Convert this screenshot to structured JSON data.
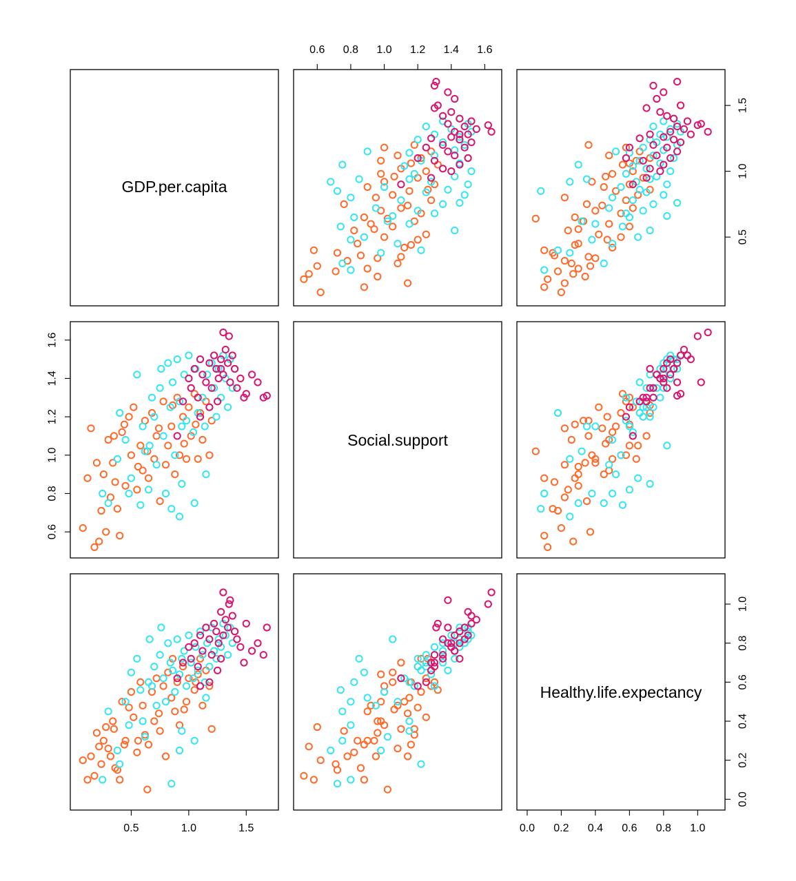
{
  "chart_data": {
    "type": "scatter",
    "variables": [
      "GDP.per.capita",
      "Social.support",
      "Healthy.life.expectancy"
    ],
    "axes": {
      "GDP.per.capita": {
        "range": [
          0.03,
          1.72
        ],
        "ticks": [
          "0.5",
          "1.0",
          "1.5"
        ]
      },
      "Social.support": {
        "range": [
          0.5,
          1.66
        ],
        "ticks": [
          "0.6",
          "0.8",
          "1.0",
          "1.2",
          "1.4",
          "1.6"
        ]
      },
      "Healthy.life.expectancy": {
        "range": [
          -0.02,
          1.12
        ],
        "ticks": [
          "0.0",
          "0.2",
          "0.4",
          "0.6",
          "0.8",
          "1.0"
        ]
      }
    },
    "groups": [
      {
        "color": "#ff6a2a",
        "points": [
          [
            0.08,
            0.62,
            0.2
          ],
          [
            0.12,
            0.88,
            0.1
          ],
          [
            0.18,
            0.52,
            0.12
          ],
          [
            0.22,
            0.55,
            0.27
          ],
          [
            0.24,
            0.71,
            0.18
          ],
          [
            0.26,
            0.9,
            0.3
          ],
          [
            0.28,
            0.6,
            0.37
          ],
          [
            0.3,
            1.08,
            0.26
          ],
          [
            0.32,
            0.78,
            0.22
          ],
          [
            0.34,
            0.96,
            0.4
          ],
          [
            0.35,
            1.1,
            0.36
          ],
          [
            0.38,
            0.72,
            0.15
          ],
          [
            0.4,
            0.58,
            0.1
          ],
          [
            0.42,
            1.12,
            0.5
          ],
          [
            0.45,
            0.84,
            0.3
          ],
          [
            0.48,
            1.2,
            0.47
          ],
          [
            0.5,
            1.0,
            0.55
          ],
          [
            0.52,
            1.25,
            0.42
          ],
          [
            0.55,
            0.82,
            0.24
          ],
          [
            0.58,
            1.05,
            0.6
          ],
          [
            0.6,
            0.92,
            0.48
          ],
          [
            0.62,
            1.18,
            0.33
          ],
          [
            0.65,
            0.88,
            0.28
          ],
          [
            0.68,
            1.22,
            0.55
          ],
          [
            0.7,
            0.98,
            0.4
          ],
          [
            0.72,
            1.1,
            0.62
          ],
          [
            0.75,
            0.76,
            0.35
          ],
          [
            0.78,
            1.28,
            0.58
          ],
          [
            0.8,
            0.95,
            0.22
          ],
          [
            0.82,
            1.05,
            0.65
          ],
          [
            0.85,
            1.15,
            0.52
          ],
          [
            0.88,
            0.9,
            0.45
          ],
          [
            0.9,
            1.3,
            0.6
          ],
          [
            0.92,
            1.0,
            0.38
          ],
          [
            0.95,
            1.2,
            0.68
          ],
          [
            0.98,
            0.98,
            0.5
          ],
          [
            1.0,
            1.25,
            0.62
          ],
          [
            1.02,
            1.1,
            0.7
          ],
          [
            1.05,
            1.32,
            0.56
          ],
          [
            1.08,
            0.98,
            0.64
          ],
          [
            1.1,
            1.22,
            0.72
          ],
          [
            1.12,
            1.08,
            0.48
          ],
          [
            1.15,
            1.28,
            0.66
          ],
          [
            1.18,
            1.0,
            0.58
          ],
          [
            1.2,
            1.18,
            0.36
          ],
          [
            0.15,
            1.14,
            0.22
          ],
          [
            0.2,
            0.96,
            0.34
          ],
          [
            0.36,
            0.86,
            0.16
          ],
          [
            0.44,
            1.16,
            0.28
          ],
          [
            0.56,
            0.94,
            0.3
          ],
          [
            0.64,
            1.02,
            0.05
          ],
          [
            0.74,
            1.14,
            0.44
          ],
          [
            0.86,
            1.26,
            0.72
          ],
          [
            0.96,
            1.06,
            0.46
          ],
          [
            1.06,
            1.16,
            0.6
          ]
        ]
      },
      {
        "color": "#33e6f2",
        "points": [
          [
            0.25,
            0.8,
            0.1
          ],
          [
            0.3,
            0.75,
            0.45
          ],
          [
            0.38,
            0.98,
            0.25
          ],
          [
            0.45,
            1.08,
            0.5
          ],
          [
            0.5,
            0.88,
            0.65
          ],
          [
            0.55,
            1.42,
            0.72
          ],
          [
            0.58,
            0.74,
            0.56
          ],
          [
            0.6,
            1.15,
            0.4
          ],
          [
            0.62,
            1.02,
            0.32
          ],
          [
            0.65,
            0.82,
            0.6
          ],
          [
            0.68,
            1.3,
            0.58
          ],
          [
            0.7,
            1.2,
            0.68
          ],
          [
            0.72,
            0.95,
            0.48
          ],
          [
            0.75,
            1.35,
            0.74
          ],
          [
            0.78,
            1.1,
            0.62
          ],
          [
            0.8,
            0.8,
            0.5
          ],
          [
            0.82,
            1.48,
            0.8
          ],
          [
            0.84,
            1.25,
            0.7
          ],
          [
            0.86,
            1.38,
            0.66
          ],
          [
            0.88,
            1.0,
            0.55
          ],
          [
            0.9,
            1.5,
            0.82
          ],
          [
            0.92,
            1.28,
            0.64
          ],
          [
            0.94,
            0.85,
            0.72
          ],
          [
            0.96,
            1.42,
            0.76
          ],
          [
            0.98,
            1.18,
            0.58
          ],
          [
            1.0,
            1.52,
            0.84
          ],
          [
            1.02,
            1.35,
            0.7
          ],
          [
            1.04,
            1.12,
            0.62
          ],
          [
            1.06,
            1.45,
            0.78
          ],
          [
            1.08,
            1.22,
            0.66
          ],
          [
            1.1,
            1.5,
            0.86
          ],
          [
            1.12,
            1.3,
            0.74
          ],
          [
            1.14,
            1.15,
            0.6
          ],
          [
            1.16,
            1.42,
            0.8
          ],
          [
            1.18,
            1.25,
            0.68
          ],
          [
            1.2,
            1.48,
            0.88
          ],
          [
            1.22,
            1.35,
            0.76
          ],
          [
            1.24,
            1.2,
            0.72
          ],
          [
            1.26,
            1.45,
            0.82
          ],
          [
            1.28,
            1.3,
            0.78
          ],
          [
            1.3,
            1.52,
            0.9
          ],
          [
            1.32,
            1.4,
            0.84
          ],
          [
            1.34,
            1.25,
            0.74
          ],
          [
            1.36,
            1.5,
            0.88
          ],
          [
            1.38,
            1.35,
            0.8
          ],
          [
            1.4,
            1.45,
            0.86
          ],
          [
            0.85,
            0.72,
            0.08
          ],
          [
            0.92,
            0.68,
            0.25
          ],
          [
            1.05,
            0.75,
            0.3
          ],
          [
            0.4,
            1.22,
            0.18
          ],
          [
            0.48,
            0.8,
            0.38
          ],
          [
            0.66,
            1.05,
            0.82
          ],
          [
            0.76,
            1.45,
            0.88
          ],
          [
            0.94,
            1.15,
            0.35
          ],
          [
            1.15,
            0.9,
            0.52
          ]
        ]
      },
      {
        "color": "#d8156f",
        "points": [
          [
            0.9,
            1.1,
            0.62
          ],
          [
            0.95,
            1.28,
            0.7
          ],
          [
            1.0,
            1.4,
            0.78
          ],
          [
            1.02,
            1.35,
            0.72
          ],
          [
            1.05,
            1.45,
            0.8
          ],
          [
            1.08,
            1.3,
            0.68
          ],
          [
            1.1,
            1.5,
            0.84
          ],
          [
            1.12,
            1.42,
            0.76
          ],
          [
            1.15,
            1.38,
            0.88
          ],
          [
            1.18,
            1.48,
            0.82
          ],
          [
            1.2,
            1.35,
            0.74
          ],
          [
            1.22,
            1.52,
            0.9
          ],
          [
            1.24,
            1.45,
            0.86
          ],
          [
            1.26,
            1.4,
            0.8
          ],
          [
            1.28,
            1.5,
            0.96
          ],
          [
            1.3,
            1.42,
            0.84
          ],
          [
            1.32,
            1.55,
            0.92
          ],
          [
            1.34,
            1.48,
            0.88
          ],
          [
            1.36,
            1.38,
            1.02
          ],
          [
            1.38,
            1.52,
            0.94
          ],
          [
            1.4,
            1.45,
            0.86
          ],
          [
            1.42,
            1.35,
            0.82
          ],
          [
            1.45,
            1.4,
            0.78
          ],
          [
            1.48,
            1.3,
            0.7
          ],
          [
            1.5,
            1.32,
            0.9
          ],
          [
            1.55,
            1.42,
            0.76
          ],
          [
            1.6,
            1.38,
            0.8
          ],
          [
            1.65,
            1.3,
            0.74
          ],
          [
            1.68,
            1.31,
            0.88
          ],
          [
            1.3,
            1.64,
            1.06
          ],
          [
            1.35,
            1.62,
            1.0
          ],
          [
            1.25,
            1.28,
            0.66
          ],
          [
            1.18,
            1.25,
            0.6
          ],
          [
            1.1,
            1.2,
            0.58
          ],
          [
            1.28,
            1.45,
            0.72
          ]
        ]
      }
    ]
  }
}
